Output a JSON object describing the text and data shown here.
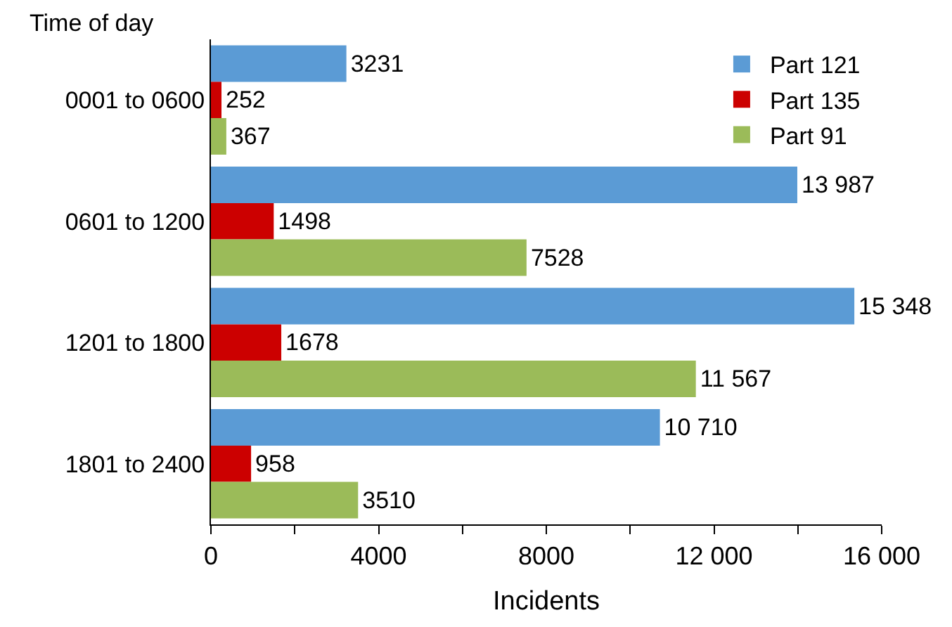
{
  "chart_data": {
    "type": "bar",
    "orientation": "horizontal",
    "xlabel": "Incidents",
    "ylabel": "Time of day",
    "categories": [
      "0001 to 0600",
      "0601 to 1200",
      "1201 to 1800",
      "1801 to 2400"
    ],
    "series": [
      {
        "name": "Part 121",
        "color": "#5b9bd5",
        "values": [
          3231,
          13987,
          15348,
          10710
        ],
        "value_labels": [
          "3231",
          "13 987",
          "15 348",
          "10 710"
        ]
      },
      {
        "name": "Part 135",
        "color": "#cc0000",
        "values": [
          252,
          1498,
          1678,
          958
        ],
        "value_labels": [
          "252",
          "1498",
          "1678",
          "958"
        ]
      },
      {
        "name": "Part 91",
        "color": "#9bbb59",
        "values": [
          367,
          7528,
          11567,
          3510
        ],
        "value_labels": [
          "367",
          "7528",
          "11 567",
          "3510"
        ]
      }
    ],
    "xlim": [
      0,
      16000
    ],
    "xticks": [
      0,
      {
        "value": 2000,
        "label": null
      },
      4000,
      {
        "value": 6000,
        "label": null
      },
      8000,
      {
        "value": 10000,
        "label": null
      },
      {
        "value": 12000,
        "label": "12 000"
      },
      {
        "value": 14000,
        "label": null
      },
      {
        "value": 16000,
        "label": "16 000"
      }
    ],
    "legend": "top right"
  }
}
